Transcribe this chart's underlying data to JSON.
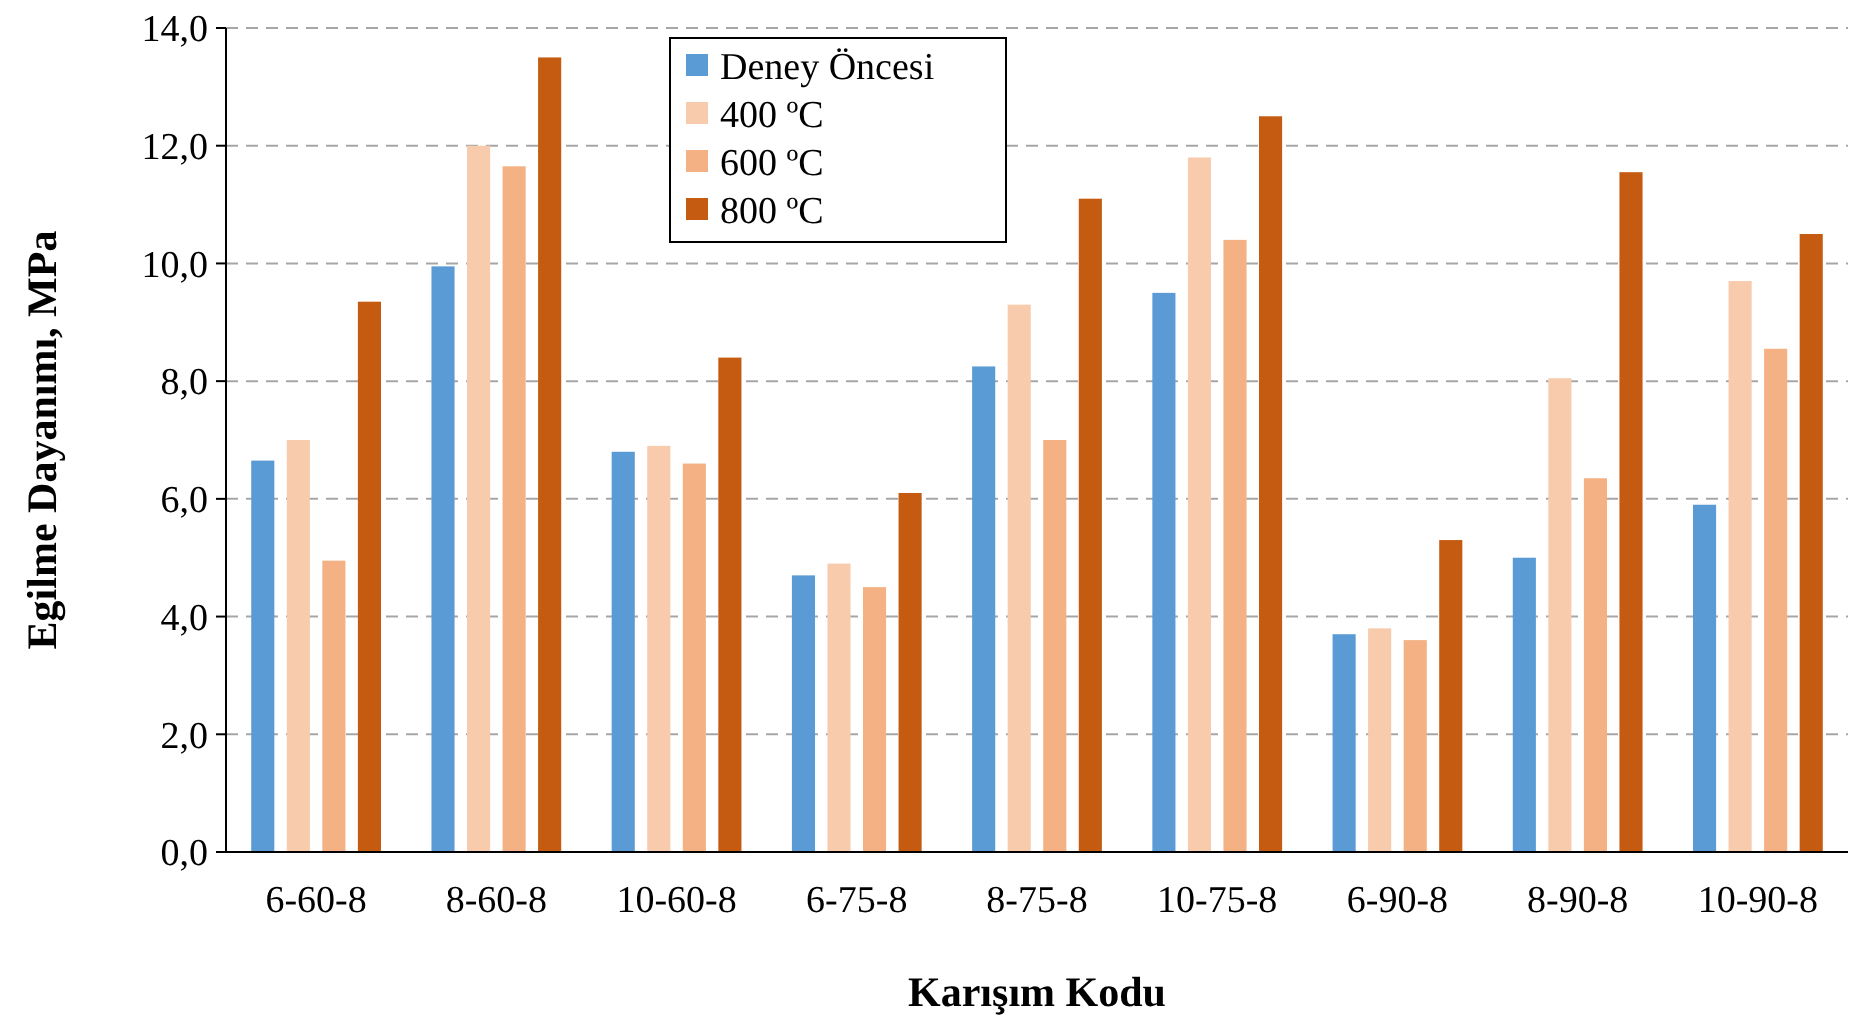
{
  "chart_data": {
    "type": "bar",
    "xlabel": "Karışım Kodu",
    "ylabel": "Egilme Dayanımı, MPa",
    "categories": [
      "6-60-8",
      "8-60-8",
      "10-60-8",
      "6-75-8",
      "8-75-8",
      "10-75-8",
      "6-90-8",
      "8-90-8",
      "10-90-8"
    ],
    "series": [
      {
        "name": "Deney Öncesi",
        "color": "#5b9bd5",
        "values": [
          6.65,
          9.95,
          6.8,
          4.7,
          8.25,
          9.5,
          3.7,
          5.0,
          5.9
        ]
      },
      {
        "name": "400 ºC",
        "color": "#f8cbad",
        "values": [
          7.0,
          12.0,
          6.9,
          4.9,
          9.3,
          11.8,
          3.8,
          8.05,
          9.7
        ]
      },
      {
        "name": "600 ºC",
        "color": "#f4b183",
        "values": [
          4.95,
          11.65,
          6.6,
          4.5,
          7.0,
          10.4,
          3.6,
          6.35,
          8.55
        ]
      },
      {
        "name": "800 ºC",
        "color": "#c55a11",
        "values": [
          9.35,
          13.5,
          8.4,
          6.1,
          11.1,
          12.5,
          5.3,
          11.55,
          10.5
        ]
      }
    ],
    "ylim": [
      0,
      14
    ],
    "yticks": [
      {
        "value": 0,
        "label": "0,0"
      },
      {
        "value": 2,
        "label": "2,0"
      },
      {
        "value": 4,
        "label": "4,0"
      },
      {
        "value": 6,
        "label": "6,0"
      },
      {
        "value": 8,
        "label": "8,0"
      },
      {
        "value": 10,
        "label": "10,0"
      },
      {
        "value": 12,
        "label": "12,0"
      },
      {
        "value": 14,
        "label": "14,0"
      }
    ],
    "grid": "y",
    "legend": "top"
  }
}
